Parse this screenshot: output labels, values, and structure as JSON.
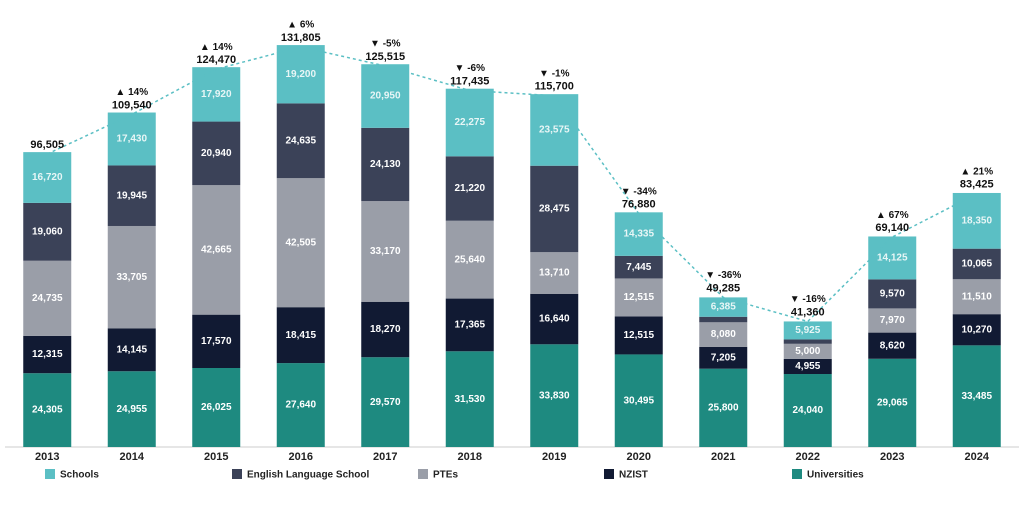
{
  "chart_data": {
    "type": "stacked-bar",
    "categories": [
      "2013",
      "2014",
      "2015",
      "2016",
      "2017",
      "2018",
      "2019",
      "2020",
      "2021",
      "2022",
      "2023",
      "2024"
    ],
    "ylim": [
      0,
      140000
    ],
    "series": [
      {
        "name": "Schools",
        "color": "#5bbfc4",
        "values": [
          16720,
          17430,
          17920,
          19200,
          20950,
          22275,
          23575,
          14335,
          6385,
          5925,
          14125,
          18350
        ],
        "value_labels": [
          "16,720",
          "17,430",
          "17,920",
          "19,200",
          "20,950",
          "22,275",
          "23,575",
          "14,335",
          "6,385",
          "5,925",
          "14,125",
          "18,350"
        ]
      },
      {
        "name": "English Language School",
        "color": "#3b4258",
        "values": [
          19060,
          19945,
          20940,
          24635,
          24130,
          21220,
          28475,
          7445,
          1815,
          1440,
          9570,
          10065
        ],
        "value_labels": [
          "19,060",
          "19,945",
          "20,940",
          "24,635",
          "24,130",
          "21,220",
          "28,475",
          "7,445",
          null,
          null,
          "9,570",
          "10,065"
        ]
      },
      {
        "name": "PTEs",
        "color": "#9a9ea8",
        "values": [
          24735,
          33705,
          42665,
          42505,
          33170,
          25640,
          13710,
          12515,
          8080,
          5000,
          7970,
          11510
        ],
        "value_labels": [
          "24,735",
          "33,705",
          "42,665",
          "42,505",
          "33,170",
          "25,640",
          "13,710",
          "12,515",
          "8,080",
          "5,000",
          "7,970",
          "11,510"
        ]
      },
      {
        "name": "NZIST",
        "color": "#111a33",
        "values": [
          12315,
          14145,
          17570,
          18415,
          18270,
          17365,
          16640,
          12515,
          7205,
          4955,
          8620,
          10270
        ],
        "value_labels": [
          "12,315",
          "14,145",
          "17,570",
          "18,415",
          "18,270",
          "17,365",
          "16,640",
          "12,515",
          "7,205",
          "4,955",
          "8,620",
          "10,270"
        ]
      },
      {
        "name": "Universities",
        "color": "#1e8a80",
        "values": [
          24305,
          24955,
          26025,
          27640,
          29570,
          31530,
          33830,
          30495,
          25800,
          24040,
          29065,
          33485
        ],
        "value_labels": [
          "24,305",
          "24,955",
          "26,025",
          "27,640",
          "29,570",
          "31,530",
          "33,830",
          "30,495",
          "25,800",
          "24,040",
          "29,065",
          "33,485"
        ]
      }
    ],
    "totals": {
      "color": "#5bbfc4",
      "values": [
        96505,
        109540,
        124470,
        131805,
        125515,
        117435,
        115700,
        76880,
        49285,
        41360,
        69140,
        83425
      ],
      "value_labels": [
        "96,505",
        "109,540",
        "124,470",
        "131,805",
        "125,515",
        "117,435",
        "115,700",
        "76,880",
        "49,285",
        "41,360",
        "69,140",
        "83,425"
      ],
      "changes": [
        null,
        "▲ 14%",
        "▲ 14%",
        "▲ 6%",
        "▼ -5%",
        "▼ -6%",
        "▼ -1%",
        "▼ -34%",
        "▼ -36%",
        "▼ -16%",
        "▲ 67%",
        "▲ 21%"
      ]
    }
  }
}
